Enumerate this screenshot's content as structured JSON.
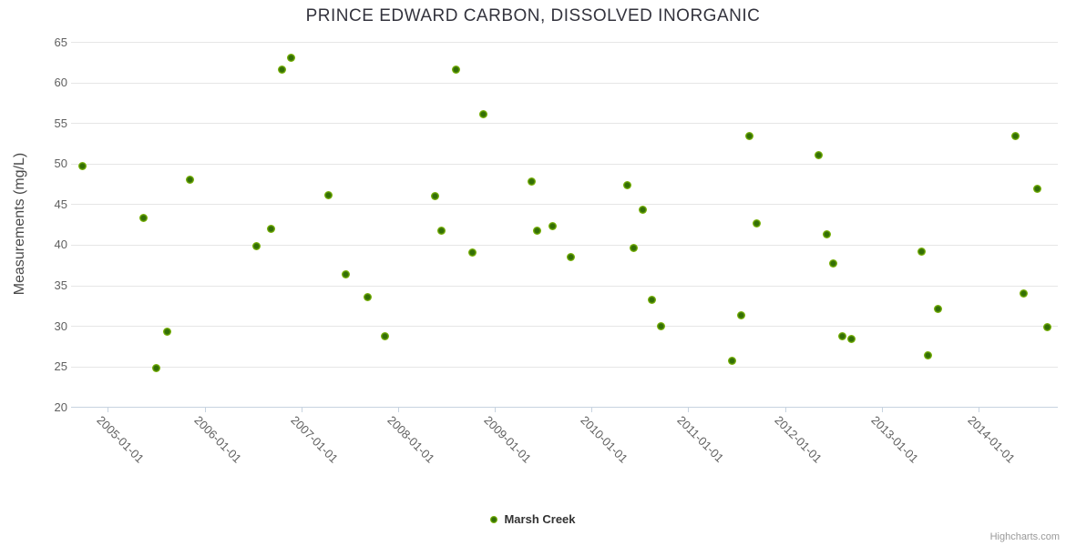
{
  "header": {
    "title": "PRINCE EDWARD CARBON, DISSOLVED INORGANIC"
  },
  "legend": {
    "items": [
      {
        "label": "Marsh Creek",
        "marker_color": "#7bb30a"
      }
    ]
  },
  "credit": {
    "label": "Highcharts.com"
  },
  "colors": {
    "point_outer": "#7bb30a",
    "point_center": "#336f06",
    "gridline": "#e6e6e6",
    "axis_line": "#c7d3e0",
    "tick_label": "#606060",
    "title_text": "#33333d"
  },
  "chart_data": {
    "type": "scatter",
    "title": "PRINCE EDWARD CARBON, DISSOLVED INORGANIC",
    "xlabel": "",
    "ylabel": "Measurements (mg/L)",
    "ylim": [
      20,
      65
    ],
    "xlim": [
      2004.62,
      2014.82
    ],
    "grid": "horizontal-only",
    "legend_position": "bottom-center",
    "y_ticks": [
      20,
      25,
      30,
      35,
      40,
      45,
      50,
      55,
      60,
      65
    ],
    "x_ticks": [
      {
        "value": 2005,
        "label": "2005-01-01"
      },
      {
        "value": 2006,
        "label": "2006-01-01"
      },
      {
        "value": 2007,
        "label": "2007-01-01"
      },
      {
        "value": 2008,
        "label": "2008-01-01"
      },
      {
        "value": 2009,
        "label": "2009-01-01"
      },
      {
        "value": 2010,
        "label": "2010-01-01"
      },
      {
        "value": 2011,
        "label": "2011-01-01"
      },
      {
        "value": 2012,
        "label": "2012-01-01"
      },
      {
        "value": 2013,
        "label": "2013-01-01"
      },
      {
        "value": 2014,
        "label": "2014-01-01"
      }
    ],
    "series": [
      {
        "name": "Marsh Creek",
        "color": "#7bb30a",
        "points": [
          [
            2004.74,
            49.7
          ],
          [
            2005.37,
            43.4
          ],
          [
            2005.5,
            24.9
          ],
          [
            2005.61,
            29.3
          ],
          [
            2005.85,
            48.1
          ],
          [
            2006.54,
            39.9
          ],
          [
            2006.69,
            42.0
          ],
          [
            2006.8,
            61.6
          ],
          [
            2006.89,
            63.1
          ],
          [
            2007.28,
            46.2
          ],
          [
            2007.46,
            36.4
          ],
          [
            2007.69,
            33.6
          ],
          [
            2007.86,
            28.8
          ],
          [
            2008.38,
            46.0
          ],
          [
            2008.45,
            41.8
          ],
          [
            2008.6,
            61.6
          ],
          [
            2008.77,
            39.1
          ],
          [
            2008.88,
            56.1
          ],
          [
            2009.38,
            47.8
          ],
          [
            2009.44,
            41.8
          ],
          [
            2009.6,
            42.3
          ],
          [
            2009.79,
            38.5
          ],
          [
            2010.37,
            47.4
          ],
          [
            2010.44,
            39.6
          ],
          [
            2010.53,
            44.4
          ],
          [
            2010.62,
            33.3
          ],
          [
            2010.72,
            30.0
          ],
          [
            2011.45,
            25.8
          ],
          [
            2011.55,
            31.3
          ],
          [
            2011.63,
            53.5
          ],
          [
            2011.71,
            42.7
          ],
          [
            2012.35,
            51.1
          ],
          [
            2012.43,
            41.3
          ],
          [
            2012.5,
            37.7
          ],
          [
            2012.59,
            28.8
          ],
          [
            2012.69,
            28.4
          ],
          [
            2013.41,
            39.2
          ],
          [
            2013.48,
            26.4
          ],
          [
            2013.58,
            32.1
          ],
          [
            2014.38,
            53.5
          ],
          [
            2014.47,
            34.0
          ],
          [
            2014.61,
            47.0
          ],
          [
            2014.71,
            29.9
          ]
        ]
      }
    ]
  }
}
